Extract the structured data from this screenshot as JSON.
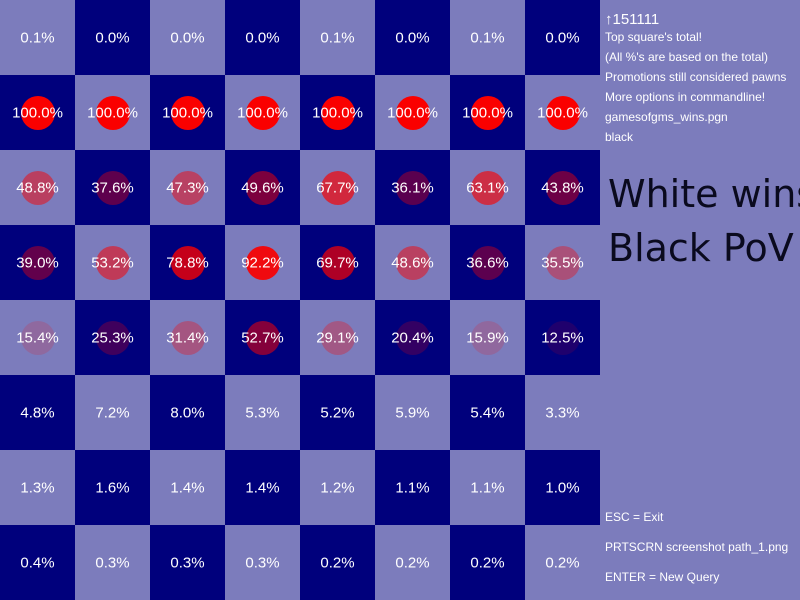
{
  "board": {
    "colors": {
      "light": "#7c7cbc",
      "dark": "#00007c"
    },
    "rows": [
      [
        "0.1%",
        "0.0%",
        "0.0%",
        "0.0%",
        "0.1%",
        "0.0%",
        "0.1%",
        "0.0%"
      ],
      [
        "100.0%",
        "100.0%",
        "100.0%",
        "100.0%",
        "100.0%",
        "100.0%",
        "100.0%",
        "100.0%"
      ],
      [
        "48.8%",
        "37.6%",
        "47.3%",
        "49.6%",
        "67.7%",
        "36.1%",
        "63.1%",
        "43.8%"
      ],
      [
        "39.0%",
        "53.2%",
        "78.8%",
        "92.2%",
        "69.7%",
        "48.6%",
        "36.6%",
        "35.5%"
      ],
      [
        "15.4%",
        "25.3%",
        "31.4%",
        "52.7%",
        "29.1%",
        "20.4%",
        "15.9%",
        "12.5%"
      ],
      [
        "4.8%",
        "7.2%",
        "8.0%",
        "5.3%",
        "5.2%",
        "5.9%",
        "5.4%",
        "3.3%"
      ],
      [
        "1.3%",
        "1.6%",
        "1.4%",
        "1.4%",
        "1.2%",
        "1.1%",
        "1.1%",
        "1.0%"
      ],
      [
        "0.4%",
        "0.3%",
        "0.3%",
        "0.3%",
        "0.2%",
        "0.2%",
        "0.2%",
        "0.2%"
      ]
    ]
  },
  "side": {
    "count": "↑151111",
    "info_lines": [
      "Top square's total!",
      "(All %'s are based on the total)",
      "Promotions still considered pawns",
      "More options in commandline!",
      "gamesofgms_wins.pgn",
      "black"
    ],
    "mode_title": "White wins",
    "pov_title": "Black PoV",
    "help": {
      "esc": "ESC = Exit",
      "prtscrn": "PRTSCRN screenshot path_1.png",
      "enter": "ENTER = New Query"
    }
  }
}
